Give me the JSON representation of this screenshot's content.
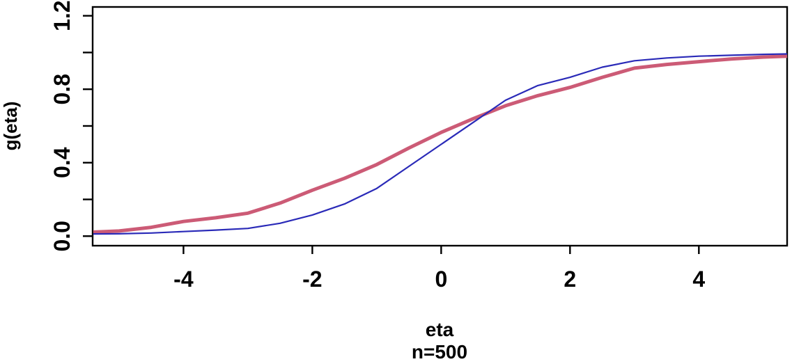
{
  "figure": {
    "background": "#ffffff",
    "axis_color": "#000000",
    "text_color": "#000000"
  },
  "chart_data": {
    "type": "line",
    "title": "",
    "xlabel": "eta",
    "xlabel_sub": "n=500",
    "ylabel": "g(eta)",
    "xlim": [
      -5.41,
      5.37
    ],
    "ylim": [
      -0.052,
      1.248
    ],
    "grid": false,
    "legend": "none",
    "x_ticks": [
      {
        "v": -4,
        "label": "-4"
      },
      {
        "v": -2,
        "label": "-2"
      },
      {
        "v": 0,
        "label": "0"
      },
      {
        "v": 2,
        "label": "2"
      },
      {
        "v": 4,
        "label": "4"
      }
    ],
    "y_ticks": [
      {
        "v": 0.0,
        "label": "0.0"
      },
      {
        "v": 0.2,
        "label": ""
      },
      {
        "v": 0.4,
        "label": "0.4"
      },
      {
        "v": 0.6,
        "label": ""
      },
      {
        "v": 0.8,
        "label": "0.8"
      },
      {
        "v": 1.0,
        "label": ""
      },
      {
        "v": 1.2,
        "label": "1.2"
      }
    ],
    "x": [
      -5.4,
      -5.0,
      -4.5,
      -4.0,
      -3.5,
      -3.0,
      -2.5,
      -2.0,
      -1.5,
      -1.0,
      -0.5,
      0.0,
      0.5,
      1.0,
      1.5,
      2.0,
      2.5,
      3.0,
      3.5,
      4.0,
      4.5,
      5.0,
      5.37
    ],
    "series": [
      {
        "name": "thick_red_curve",
        "color": "#cc5b76",
        "stroke_width": 5,
        "values": [
          0.022,
          0.028,
          0.048,
          0.08,
          0.1,
          0.125,
          0.18,
          0.25,
          0.315,
          0.39,
          0.48,
          0.565,
          0.64,
          0.71,
          0.765,
          0.81,
          0.865,
          0.915,
          0.935,
          0.95,
          0.965,
          0.975,
          0.98
        ]
      },
      {
        "name": "thin_blue_curve",
        "color": "#2a2ab8",
        "stroke_width": 2.2,
        "values": [
          0.012,
          0.013,
          0.017,
          0.025,
          0.033,
          0.042,
          0.07,
          0.115,
          0.175,
          0.26,
          0.38,
          0.5,
          0.62,
          0.74,
          0.82,
          0.865,
          0.92,
          0.955,
          0.97,
          0.98,
          0.985,
          0.99,
          0.992
        ]
      }
    ]
  }
}
